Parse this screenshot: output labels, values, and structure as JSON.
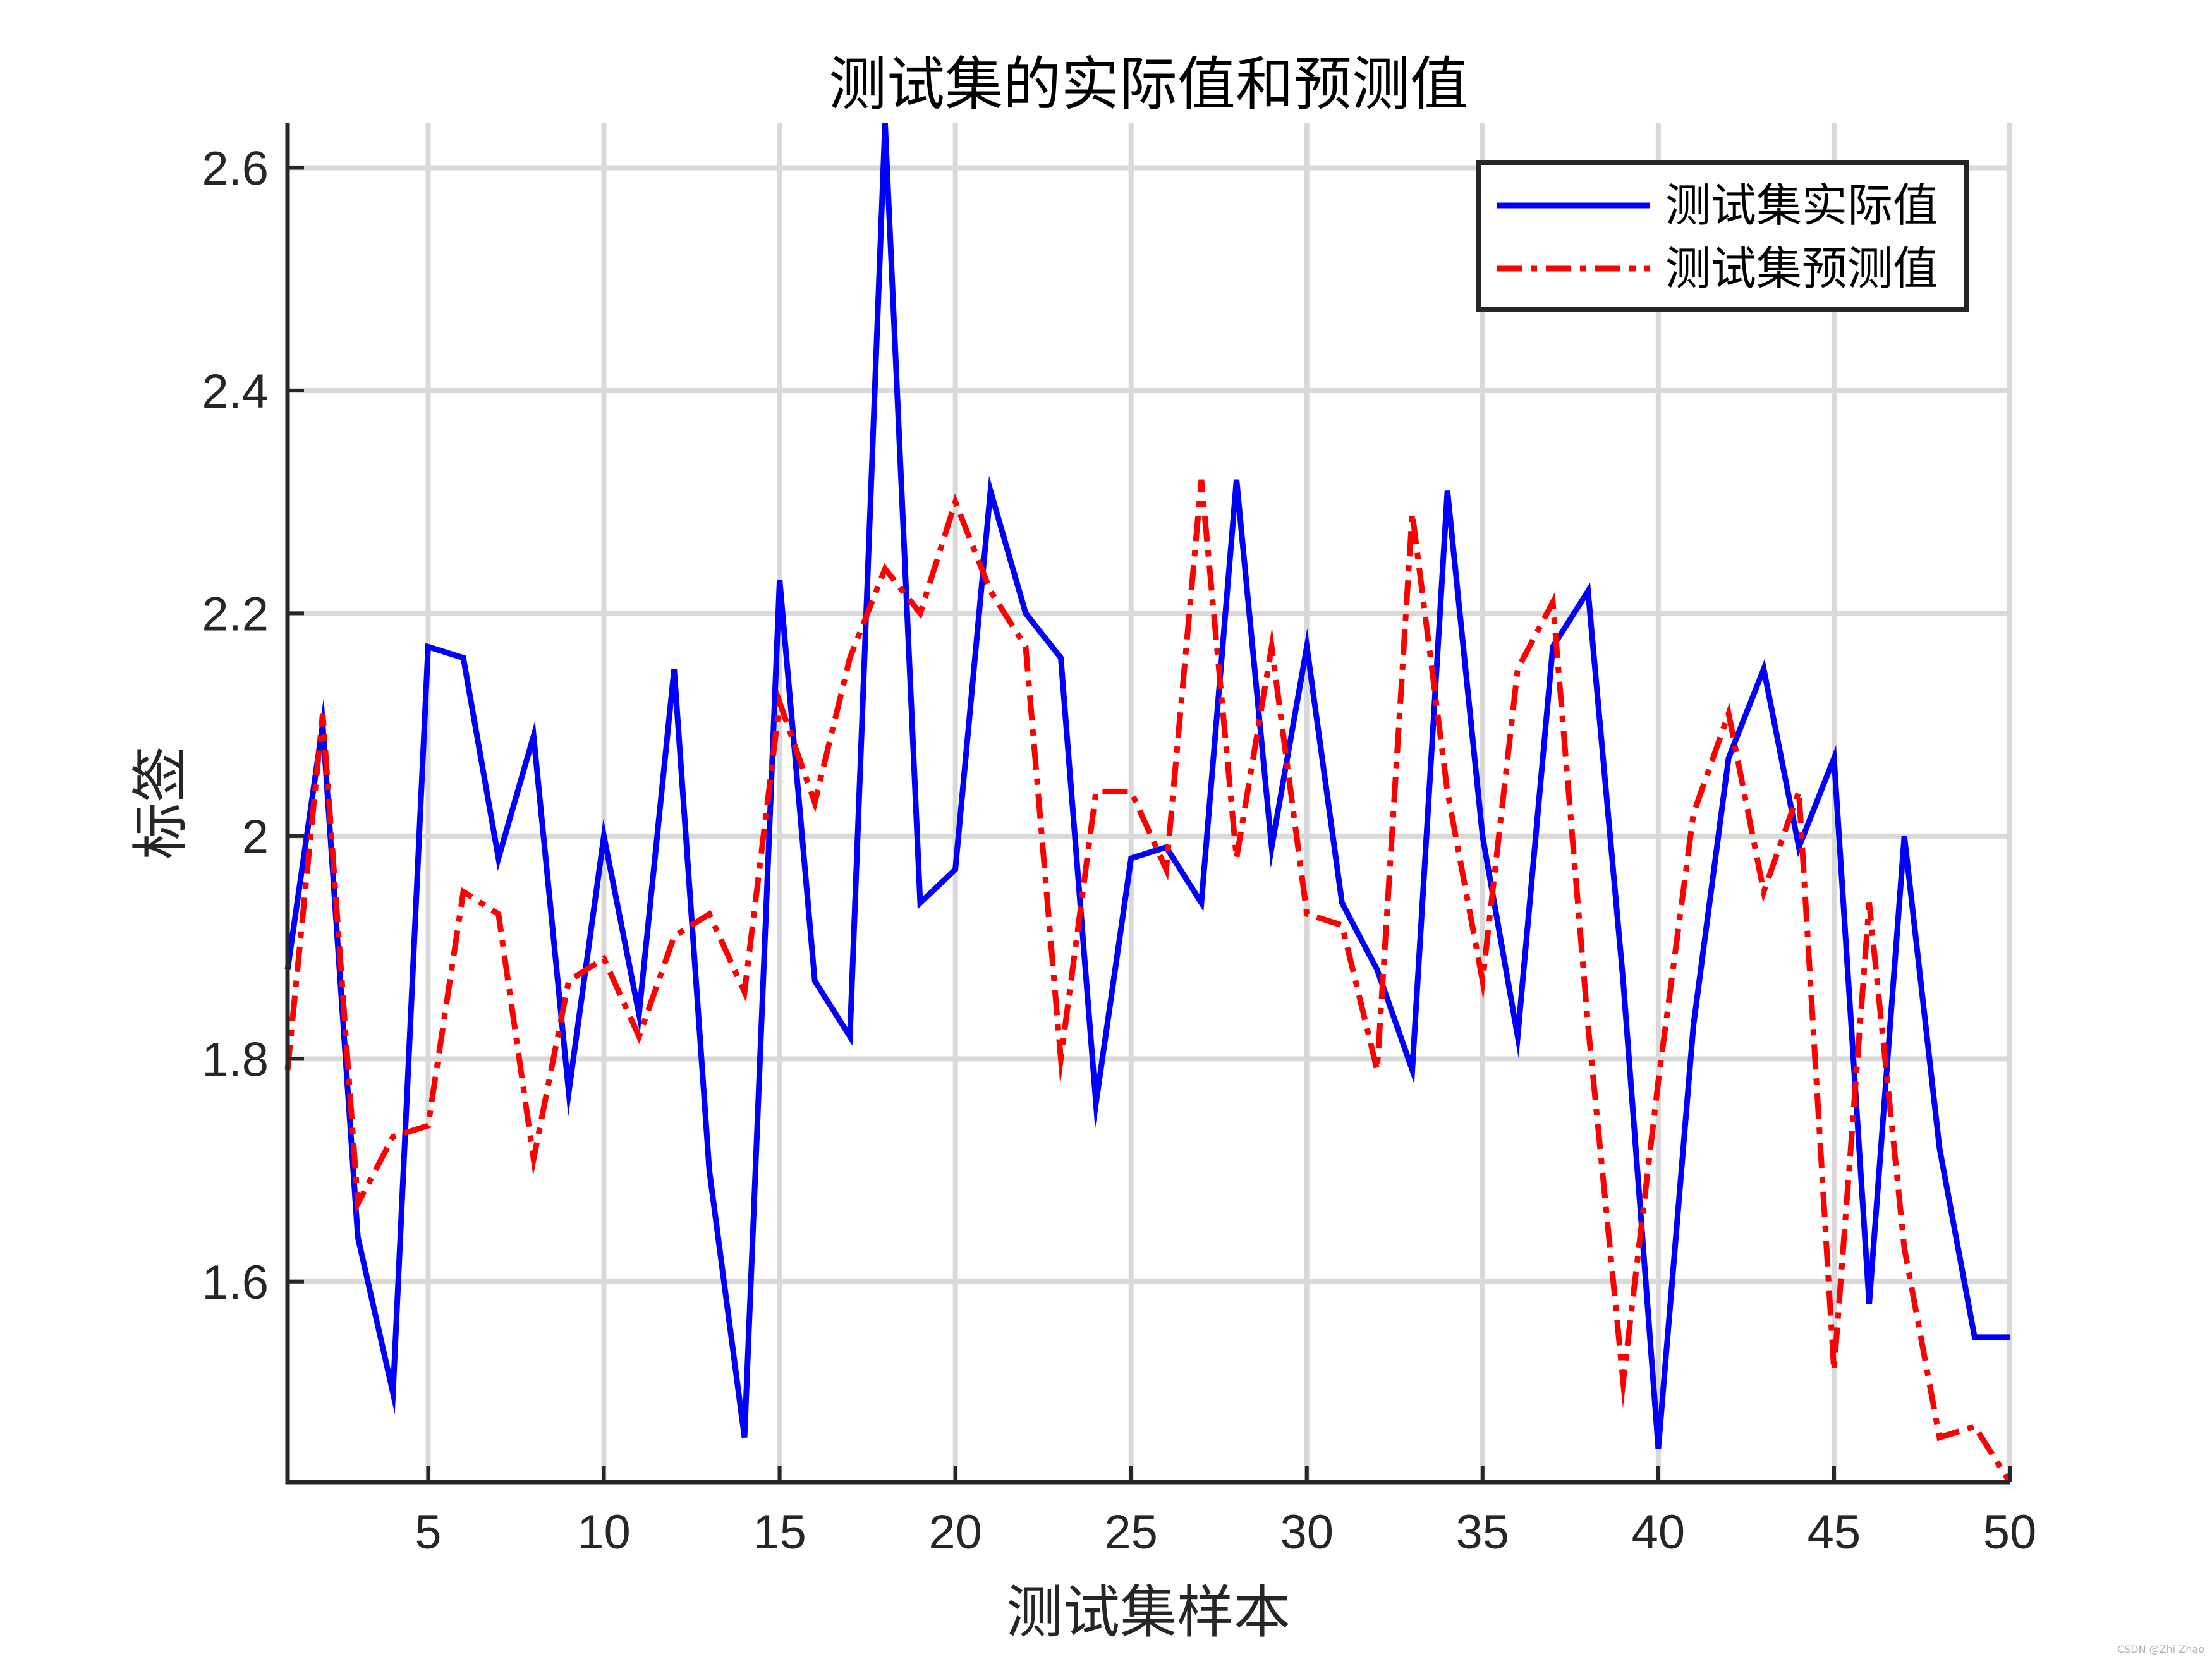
{
  "chart_data": {
    "type": "line",
    "title": "测试集的实际值和预测值",
    "xlabel": "测试集样本",
    "ylabel": "标签",
    "xlim": [
      1,
      50
    ],
    "ylim": [
      1.42,
      2.64
    ],
    "xticks": [
      5,
      10,
      15,
      20,
      25,
      30,
      35,
      40,
      45,
      50
    ],
    "yticks": [
      1.6,
      1.8,
      2,
      2.2,
      2.4,
      2.6
    ],
    "ytick_labels": [
      "1.6",
      "1.8",
      "2",
      "2.2",
      "2.4",
      "2.6"
    ],
    "grid": true,
    "legend_position": "top-right",
    "x": [
      1,
      2,
      3,
      4,
      5,
      6,
      7,
      8,
      9,
      10,
      11,
      12,
      13,
      14,
      15,
      16,
      17,
      18,
      19,
      20,
      21,
      22,
      23,
      24,
      25,
      26,
      27,
      28,
      29,
      30,
      31,
      32,
      33,
      34,
      35,
      36,
      37,
      38,
      39,
      40,
      41,
      42,
      43,
      44,
      45,
      46,
      47,
      48,
      49,
      50
    ],
    "series": [
      {
        "name": "测试集实际值",
        "color": "#0000ff",
        "style": "solid",
        "values": [
          1.88,
          2.1,
          1.64,
          1.5,
          2.17,
          2.16,
          1.98,
          2.09,
          1.77,
          2.0,
          1.84,
          2.15,
          1.7,
          1.46,
          2.23,
          1.87,
          1.82,
          2.64,
          1.94,
          1.97,
          2.31,
          2.2,
          2.16,
          1.76,
          1.98,
          1.99,
          1.94,
          2.32,
          1.99,
          2.17,
          1.94,
          1.88,
          1.79,
          2.31,
          2.0,
          1.82,
          2.17,
          2.22,
          1.87,
          1.45,
          1.83,
          2.07,
          2.15,
          1.99,
          2.07,
          1.58,
          2.0,
          1.72,
          1.55,
          1.55
        ]
      },
      {
        "name": "测试集预测值",
        "color": "#ff0000",
        "style": "dashdot",
        "values": [
          1.79,
          2.11,
          1.67,
          1.73,
          1.74,
          1.95,
          1.93,
          1.71,
          1.87,
          1.89,
          1.82,
          1.91,
          1.93,
          1.86,
          2.12,
          2.03,
          2.16,
          2.24,
          2.2,
          2.3,
          2.22,
          2.17,
          1.8,
          2.04,
          2.04,
          1.97,
          2.32,
          1.98,
          2.17,
          1.93,
          1.92,
          1.79,
          2.29,
          2.04,
          1.87,
          2.15,
          2.21,
          1.83,
          1.51,
          1.78,
          2.02,
          2.11,
          1.95,
          2.04,
          1.52,
          1.94,
          1.63,
          1.46,
          1.47,
          1.42
        ]
      }
    ]
  },
  "watermark": "CSDN @Zhi Zhao"
}
